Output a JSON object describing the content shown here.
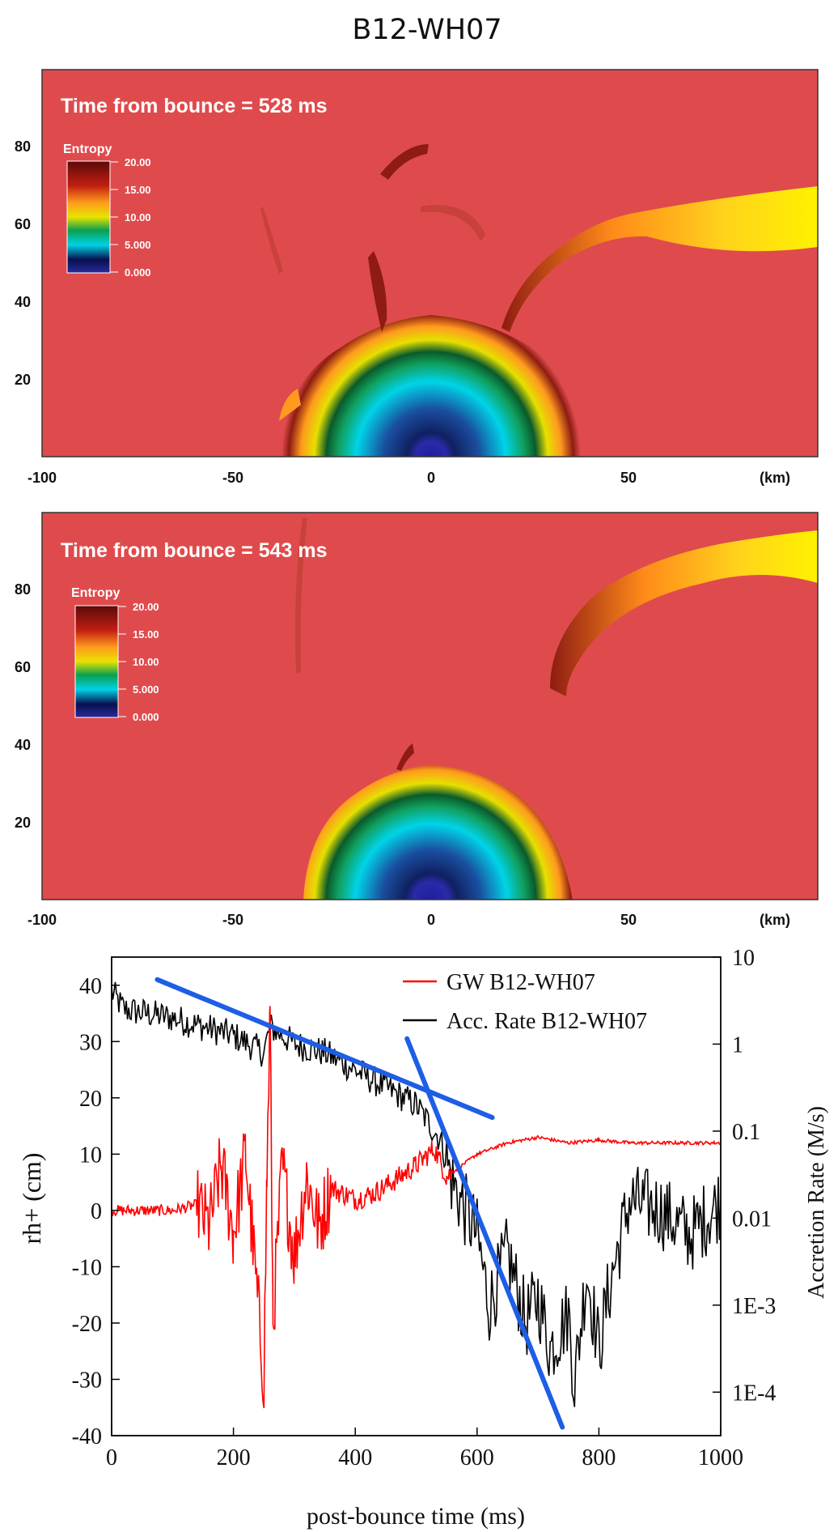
{
  "figure_title": "B12-WH07",
  "colors": {
    "background_red": "#df4b4d",
    "gw_line": "#ff0000",
    "acc_line": "#000000",
    "fit_line": "#1e5ee6"
  },
  "panels": [
    {
      "time_label": "Time from bounce = 528 ms",
      "colorbar_title": "Entropy",
      "colorbar_ticks": [
        "20.00",
        "15.00",
        "10.00",
        "5.000",
        "0.000"
      ],
      "y_ticks": [
        "80",
        "60",
        "40",
        "20"
      ],
      "x_ticks": [
        "-100",
        "-50",
        "0",
        "50"
      ],
      "x_unit": "(km)"
    },
    {
      "time_label": "Time from bounce = 543 ms",
      "colorbar_title": "Entropy",
      "colorbar_ticks": [
        "20.00",
        "15.00",
        "10.00",
        "5.000",
        "0.000"
      ],
      "y_ticks": [
        "80",
        "60",
        "40",
        "20"
      ],
      "x_ticks": [
        "-100",
        "-50",
        "0",
        "50"
      ],
      "x_unit": "(km)"
    }
  ],
  "chart_data": {
    "type": "line",
    "xlabel": "post-bounce time (ms)",
    "ylabel_left": "rh+ (cm)",
    "ylabel_right": "Accretion Rate (M/s)",
    "xlim": [
      0,
      1000
    ],
    "ylim_left": [
      -40,
      45
    ],
    "ylim_right_log10": [
      -4.5,
      1.0
    ],
    "x_ticks": [
      "0",
      "200",
      "400",
      "600",
      "800",
      "1000"
    ],
    "y_left_ticks": [
      "40",
      "30",
      "20",
      "10",
      "0",
      "-10",
      "-20",
      "-30",
      "-40"
    ],
    "y_right_ticks": [
      "10",
      "1",
      "0.1",
      "0.01",
      "1E-3",
      "1E-4"
    ],
    "legend": [
      "GW B12-WH07",
      "Acc. Rate B12-WH07"
    ],
    "series": [
      {
        "name": "GW B12-WH07",
        "axis": "left",
        "x": [
          0,
          50,
          100,
          140,
          160,
          180,
          200,
          220,
          250,
          255,
          260,
          265,
          280,
          300,
          320,
          340,
          360,
          400,
          430,
          460,
          500,
          530,
          550,
          600,
          650,
          700,
          750,
          800,
          850,
          900,
          950,
          1000
        ],
        "y": [
          0,
          0,
          0,
          1,
          -3,
          8,
          -4,
          10,
          -30,
          6,
          35,
          -20,
          8,
          -8,
          6,
          -3,
          4,
          2,
          3,
          5,
          8,
          11,
          6,
          10,
          12,
          13,
          12,
          12.5,
          12,
          12,
          12,
          12
        ]
      },
      {
        "name": "Acc. Rate B12-WH07",
        "axis": "right",
        "x": [
          0,
          20,
          60,
          100,
          150,
          200,
          250,
          260,
          300,
          350,
          400,
          450,
          500,
          520,
          540,
          560,
          600,
          620,
          650,
          680,
          700,
          720,
          750,
          760,
          780,
          800,
          820,
          850,
          900,
          950,
          1000
        ],
        "y_log10": [
          0.6,
          0.4,
          0.35,
          0.3,
          0.2,
          0.1,
          -0.1,
          0.2,
          0.0,
          -0.1,
          -0.3,
          -0.5,
          -0.7,
          -0.9,
          -1.1,
          -1.6,
          -2.2,
          -3.0,
          -2.4,
          -3.2,
          -2.9,
          -3.5,
          -3.1,
          -3.9,
          -2.6,
          -3.5,
          -2.7,
          -1.8,
          -1.9,
          -2.2,
          -1.8
        ]
      }
    ],
    "fit_lines": [
      {
        "x": [
          75,
          625
        ],
        "y_left": [
          41,
          16.5
        ]
      },
      {
        "x": [
          485,
          740
        ],
        "y_left": [
          30.5,
          -38.5
        ]
      }
    ]
  }
}
